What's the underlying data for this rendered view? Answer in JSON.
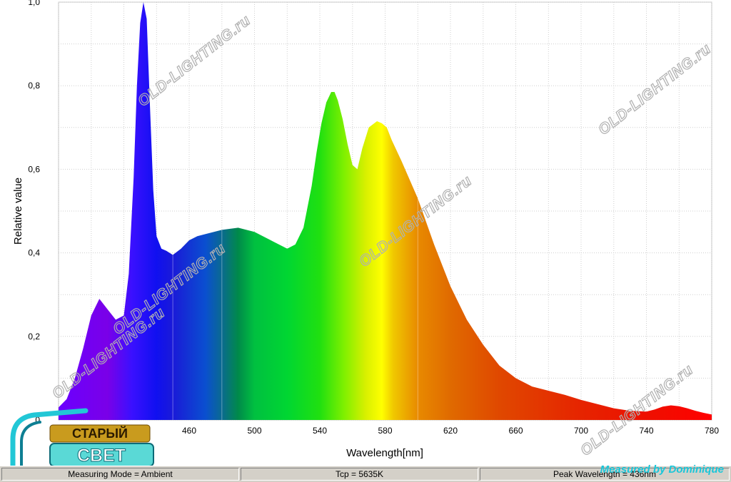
{
  "chart_data": {
    "type": "area",
    "title": "",
    "xlabel": "Wavelength[nm]",
    "ylabel": "Relative value",
    "xlim": [
      380,
      780
    ],
    "ylim": [
      0,
      1
    ],
    "x_ticks": [
      460,
      500,
      540,
      580,
      620,
      660,
      700,
      740,
      780
    ],
    "x_tick_labels": [
      "460",
      "500",
      "540",
      "580",
      "620",
      "660",
      "700",
      "740",
      "780"
    ],
    "y_ticks": [
      0,
      0.2,
      0.4,
      0.6,
      0.8,
      1.0
    ],
    "y_tick_labels": [
      "0",
      "0,2",
      "0,4",
      "0,6",
      "0,8",
      "1,0"
    ],
    "grid": true,
    "fill": "spectral color gradient",
    "x": [
      380,
      385,
      390,
      395,
      400,
      405,
      410,
      415,
      420,
      423,
      426,
      428,
      430,
      432,
      434,
      436,
      438,
      440,
      443,
      446,
      450,
      455,
      460,
      465,
      470,
      480,
      490,
      500,
      510,
      520,
      525,
      530,
      535,
      538,
      541,
      544,
      547,
      549,
      551,
      554,
      557,
      560,
      563,
      566,
      570,
      575,
      578,
      581,
      584,
      590,
      600,
      610,
      620,
      630,
      640,
      650,
      660,
      670,
      680,
      690,
      700,
      710,
      720,
      730,
      740,
      745,
      750,
      755,
      760,
      765,
      770,
      775,
      780
    ],
    "y": [
      0.03,
      0.05,
      0.1,
      0.17,
      0.25,
      0.29,
      0.265,
      0.24,
      0.25,
      0.35,
      0.58,
      0.8,
      0.95,
      1.0,
      0.96,
      0.75,
      0.55,
      0.44,
      0.41,
      0.405,
      0.395,
      0.41,
      0.43,
      0.44,
      0.445,
      0.455,
      0.46,
      0.45,
      0.43,
      0.41,
      0.42,
      0.46,
      0.56,
      0.64,
      0.71,
      0.76,
      0.785,
      0.785,
      0.765,
      0.72,
      0.66,
      0.61,
      0.6,
      0.65,
      0.7,
      0.715,
      0.71,
      0.7,
      0.67,
      0.62,
      0.53,
      0.42,
      0.32,
      0.24,
      0.18,
      0.13,
      0.1,
      0.08,
      0.07,
      0.06,
      0.048,
      0.038,
      0.028,
      0.022,
      0.02,
      0.025,
      0.032,
      0.035,
      0.033,
      0.028,
      0.022,
      0.017,
      0.013
    ]
  },
  "watermarks": [
    "OLD-LIGHTING.ru",
    "OLD-LIGHTING.ru",
    "OLD-LIGHTING.ru",
    "OLD-LIGHTING.ru",
    "OLD-LIGHTING.ru",
    "OLD-LIGHTING.ru"
  ],
  "logo": {
    "line1": "СТАРЫЙ",
    "line2": "СВЕТ"
  },
  "credit": "Measured by Dominique",
  "status": {
    "mode": "Measuring Mode = Ambient",
    "tcp": "Tcp = 5635K",
    "peak": "Peak Wavelength = 436nm"
  }
}
